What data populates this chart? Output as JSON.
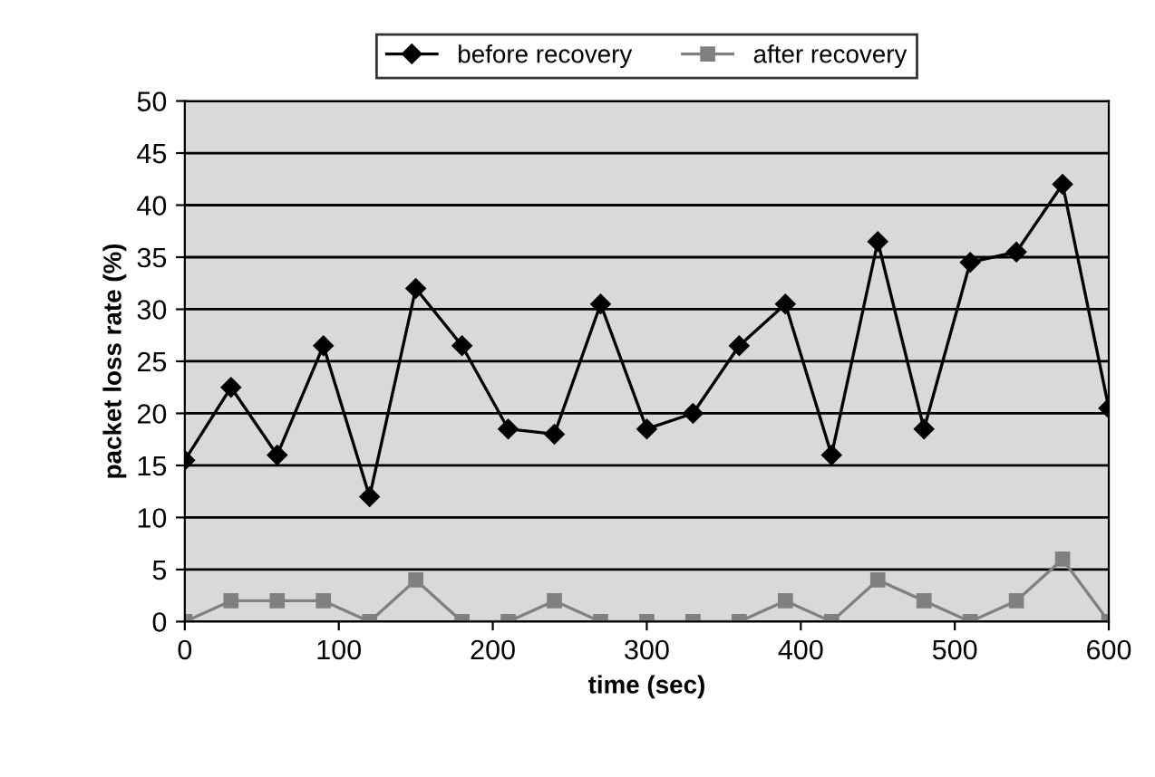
{
  "chart_data": {
    "type": "line",
    "xlabel": "time (sec)",
    "ylabel": "packet loss rate (%)",
    "x": [
      0,
      30,
      60,
      90,
      120,
      150,
      180,
      210,
      240,
      270,
      300,
      330,
      360,
      390,
      420,
      450,
      480,
      510,
      540,
      570,
      600
    ],
    "series": [
      {
        "name": "before recovery",
        "color": "#000000",
        "marker": "diamond",
        "values": [
          15.5,
          22.5,
          16,
          26.5,
          12,
          32,
          26.5,
          18.5,
          18,
          30.5,
          18.5,
          20,
          26.5,
          30.5,
          16,
          36.5,
          18.5,
          34.5,
          35.5,
          42,
          20.5
        ]
      },
      {
        "name": "after recovery",
        "color": "#808080",
        "marker": "square",
        "values": [
          0,
          2,
          2,
          2,
          0,
          4,
          0,
          0,
          2,
          0,
          0,
          0,
          0,
          2,
          0,
          4,
          2,
          0,
          2,
          6,
          0
        ]
      }
    ],
    "xlim": [
      0,
      600
    ],
    "xticks": [
      0,
      100,
      200,
      300,
      400,
      500,
      600
    ],
    "ylim": [
      0,
      50
    ],
    "yticks": [
      0,
      5,
      10,
      15,
      20,
      25,
      30,
      35,
      40,
      45,
      50
    ],
    "grid": "y",
    "legend": "top"
  }
}
